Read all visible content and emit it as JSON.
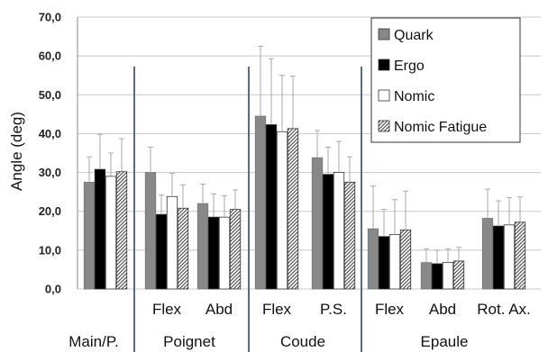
{
  "chart_data": {
    "type": "bar",
    "ylabel": "Angle (deg)",
    "ylim": [
      0,
      70
    ],
    "yticks": [
      "0,0",
      "10,0",
      "20,0",
      "30,0",
      "40,0",
      "50,0",
      "60,0",
      "70,0"
    ],
    "grid": "horizontal",
    "legend_position": "top-right",
    "categories": [
      "Main/P.",
      "Flex",
      "Abd",
      "Flex",
      "P.S.",
      "Flex",
      "Abd",
      "Rot. Ax."
    ],
    "groups": [
      {
        "label": "Main/P.",
        "categories": [
          "Main/P."
        ]
      },
      {
        "label": "Poignet",
        "categories": [
          "Flex",
          "Abd"
        ]
      },
      {
        "label": "Coude",
        "categories": [
          "Flex",
          "P.S."
        ]
      },
      {
        "label": "Epaule",
        "categories": [
          "Flex",
          "Abd",
          "Rot. Ax."
        ]
      }
    ],
    "series": [
      {
        "name": "Quark",
        "fill": "#888888",
        "values": [
          27.5,
          30.0,
          22.0,
          44.5,
          33.8,
          15.5,
          6.8,
          18.2
        ],
        "errors": [
          6.5,
          6.5,
          5.0,
          18.0,
          7.0,
          11.0,
          3.5,
          7.5
        ]
      },
      {
        "name": "Ergo",
        "fill": "#000000",
        "values": [
          30.8,
          19.2,
          18.5,
          42.3,
          29.5,
          13.5,
          6.5,
          16.2
        ],
        "errors": [
          9.0,
          5.0,
          6.0,
          17.0,
          7.0,
          7.0,
          3.5,
          6.5
        ]
      },
      {
        "name": "Nomic",
        "fill": "#ffffff",
        "values": [
          29.0,
          23.8,
          18.5,
          40.5,
          30.0,
          14.0,
          6.8,
          16.5
        ],
        "errors": [
          6.0,
          6.0,
          5.5,
          14.5,
          8.0,
          9.0,
          3.5,
          7.0
        ]
      },
      {
        "name": "Nomic Fatigue",
        "fill": "hatch",
        "values": [
          30.2,
          20.8,
          20.5,
          41.3,
          27.5,
          15.2,
          7.2,
          17.2
        ],
        "errors": [
          8.5,
          6.0,
          5.0,
          13.5,
          6.5,
          10.0,
          3.5,
          6.5
        ]
      }
    ]
  }
}
